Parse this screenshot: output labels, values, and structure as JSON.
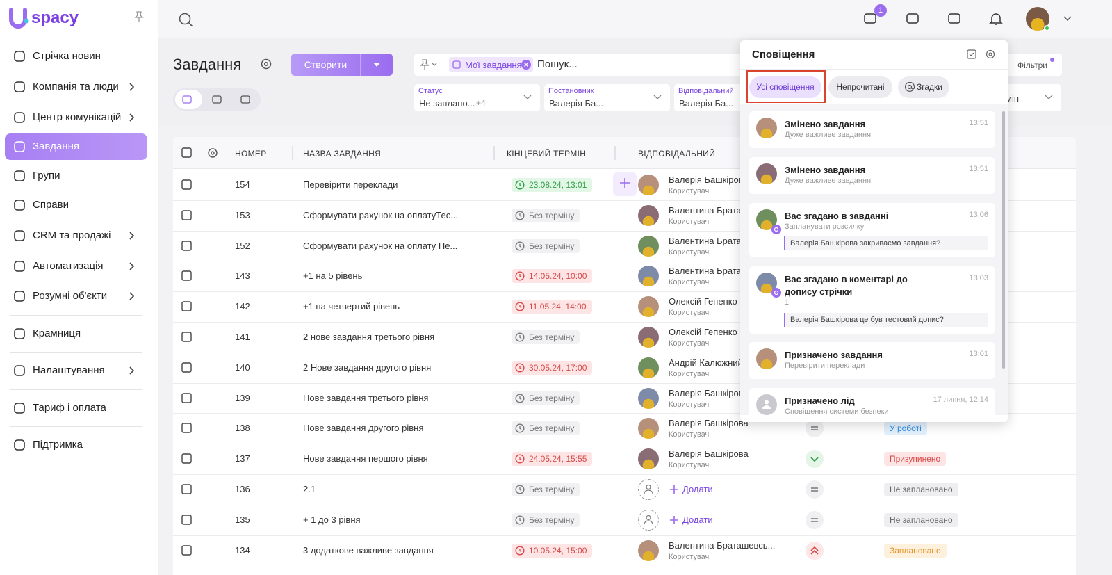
{
  "logo": "spacy",
  "sidebar": {
    "items": [
      "Стрічка новин",
      "Компанія та люди",
      "Центр комунікацій",
      "Завдання",
      "Групи",
      "Справи",
      "CRM та продажі",
      "Автоматизація",
      "Розумні об'єкти",
      "Крамниця",
      "Налаштування",
      "Тариф і оплата",
      "Підтримка"
    ]
  },
  "header": {
    "badge": "1"
  },
  "toolbar": {
    "title": "Завдання",
    "create": "Створити",
    "chip": "Мої завдання",
    "search": "Пошук...",
    "filters_button": "Фільтри"
  },
  "filters": [
    {
      "label": "Статус",
      "value": "Не заплано...",
      "extra": "+4"
    },
    {
      "label": "Постановник",
      "value": "Валерія Ба..."
    },
    {
      "label": "Відповідальний",
      "value": "Валерія Ба..."
    },
    {
      "value": "мін"
    }
  ],
  "table": {
    "headers": [
      "НОМЕР",
      "НАЗВА ЗАВДАННЯ",
      "КІНЦЕВИЙ ТЕРМІН",
      "ВІДПОВІДАЛЬНИЙ"
    ],
    "rows": [
      {
        "number": 154,
        "name": "Перевірити переклади",
        "deadline": "23.08.24, 13:01",
        "deadline_color": "green",
        "assignee": "Валерія Башкірова",
        "role": "Користувач"
      },
      {
        "number": 153,
        "name": "Сформувати рахунок на оплатуТес...",
        "deadline": "Без терміну",
        "assignee": "Валентина Браташевсь...",
        "role": "Користувач"
      },
      {
        "number": 152,
        "name": "Сформувати рахунок на оплату Пе...",
        "deadline": "Без терміну",
        "assignee": "Валентина Браташевсь...",
        "role": "Користувач"
      },
      {
        "number": 143,
        "name": "+1 на 5 рівень",
        "deadline": "14.05.24, 10:00",
        "deadline_color": "red",
        "assignee": "Валентина Браташевсь...",
        "role": "Користувач"
      },
      {
        "number": 142,
        "name": "+1 на четвертий рівень",
        "deadline": "11.05.24, 14:00",
        "deadline_color": "red",
        "assignee": "Олексій Гепенко",
        "role": "Користувач"
      },
      {
        "number": 141,
        "name": "2 нове завдання третього рівня",
        "deadline": "Без терміну",
        "assignee": "Олексій Гепенко",
        "role": "Користувач"
      },
      {
        "number": 140,
        "name": "2 Нове завдання другого рівня",
        "deadline": "30.05.24, 17:00",
        "deadline_color": "red",
        "assignee": "Андрій Калюжний",
        "role": "Користувач"
      },
      {
        "number": 139,
        "name": "Нове завдання третього рівня",
        "deadline": "Без терміну",
        "assignee": "Валерія Башкірова",
        "role": "Користувач"
      },
      {
        "number": 138,
        "name": "Нове завдання другого рівня",
        "deadline": "Без терміну",
        "assignee": "Валерія Башкірова",
        "role": "Користувач",
        "status": "У роботі",
        "status_color": "blue"
      },
      {
        "number": 137,
        "name": "Нове завдання першого рівня",
        "deadline": "24.05.24, 15:55",
        "deadline_color": "red",
        "assignee": "Валерія Башкірова",
        "role": "Користувач",
        "status": "Призупинено",
        "status_color": "red"
      },
      {
        "number": 136,
        "name": "2.1",
        "deadline": "Без терміну",
        "add": "Додати",
        "status": "Не заплановано",
        "status_color": "grey"
      },
      {
        "number": 135,
        "name": "+ 1 до 3 рівня",
        "deadline": "Без терміну",
        "add": "Додати",
        "status": "Не заплановано",
        "status_color": "grey"
      },
      {
        "number": 134,
        "name": "3 додаткове важливе завдання",
        "deadline": "10.05.24, 15:00",
        "deadline_color": "red",
        "assignee": "Валентина Браташевсь...",
        "role": "Користувач",
        "status": "Заплановано",
        "status_color": "orange"
      }
    ]
  },
  "notifications": {
    "title": "Сповіщення",
    "tabs": [
      "Усі сповіщення",
      "Непрочитані",
      "Згадки"
    ],
    "items": [
      {
        "title": "Змінено завдання",
        "text": "Дуже важливе завдання",
        "time": "13:51"
      },
      {
        "title": "Змінено завдання",
        "text": "Дуже важливе завдання",
        "time": "13:51"
      },
      {
        "title": "Вас згадано в завданні",
        "text": "Запланувати розсилку",
        "quote": "Валерія Башкірова закриваємо завдання?",
        "time": "13:06"
      },
      {
        "title": "Вас згадано в коментарі до допису стрічки",
        "text": "1",
        "quote": "Валерія Башкірова це був тестовий допис?",
        "time": "13:03"
      },
      {
        "title": "Призначено завдання",
        "text": "Перевірити переклади",
        "time": "13:01"
      },
      {
        "title": "Призначено лід",
        "text": "Сповіщення системи безпеки",
        "time": "17 липня, 12:14"
      }
    ]
  }
}
